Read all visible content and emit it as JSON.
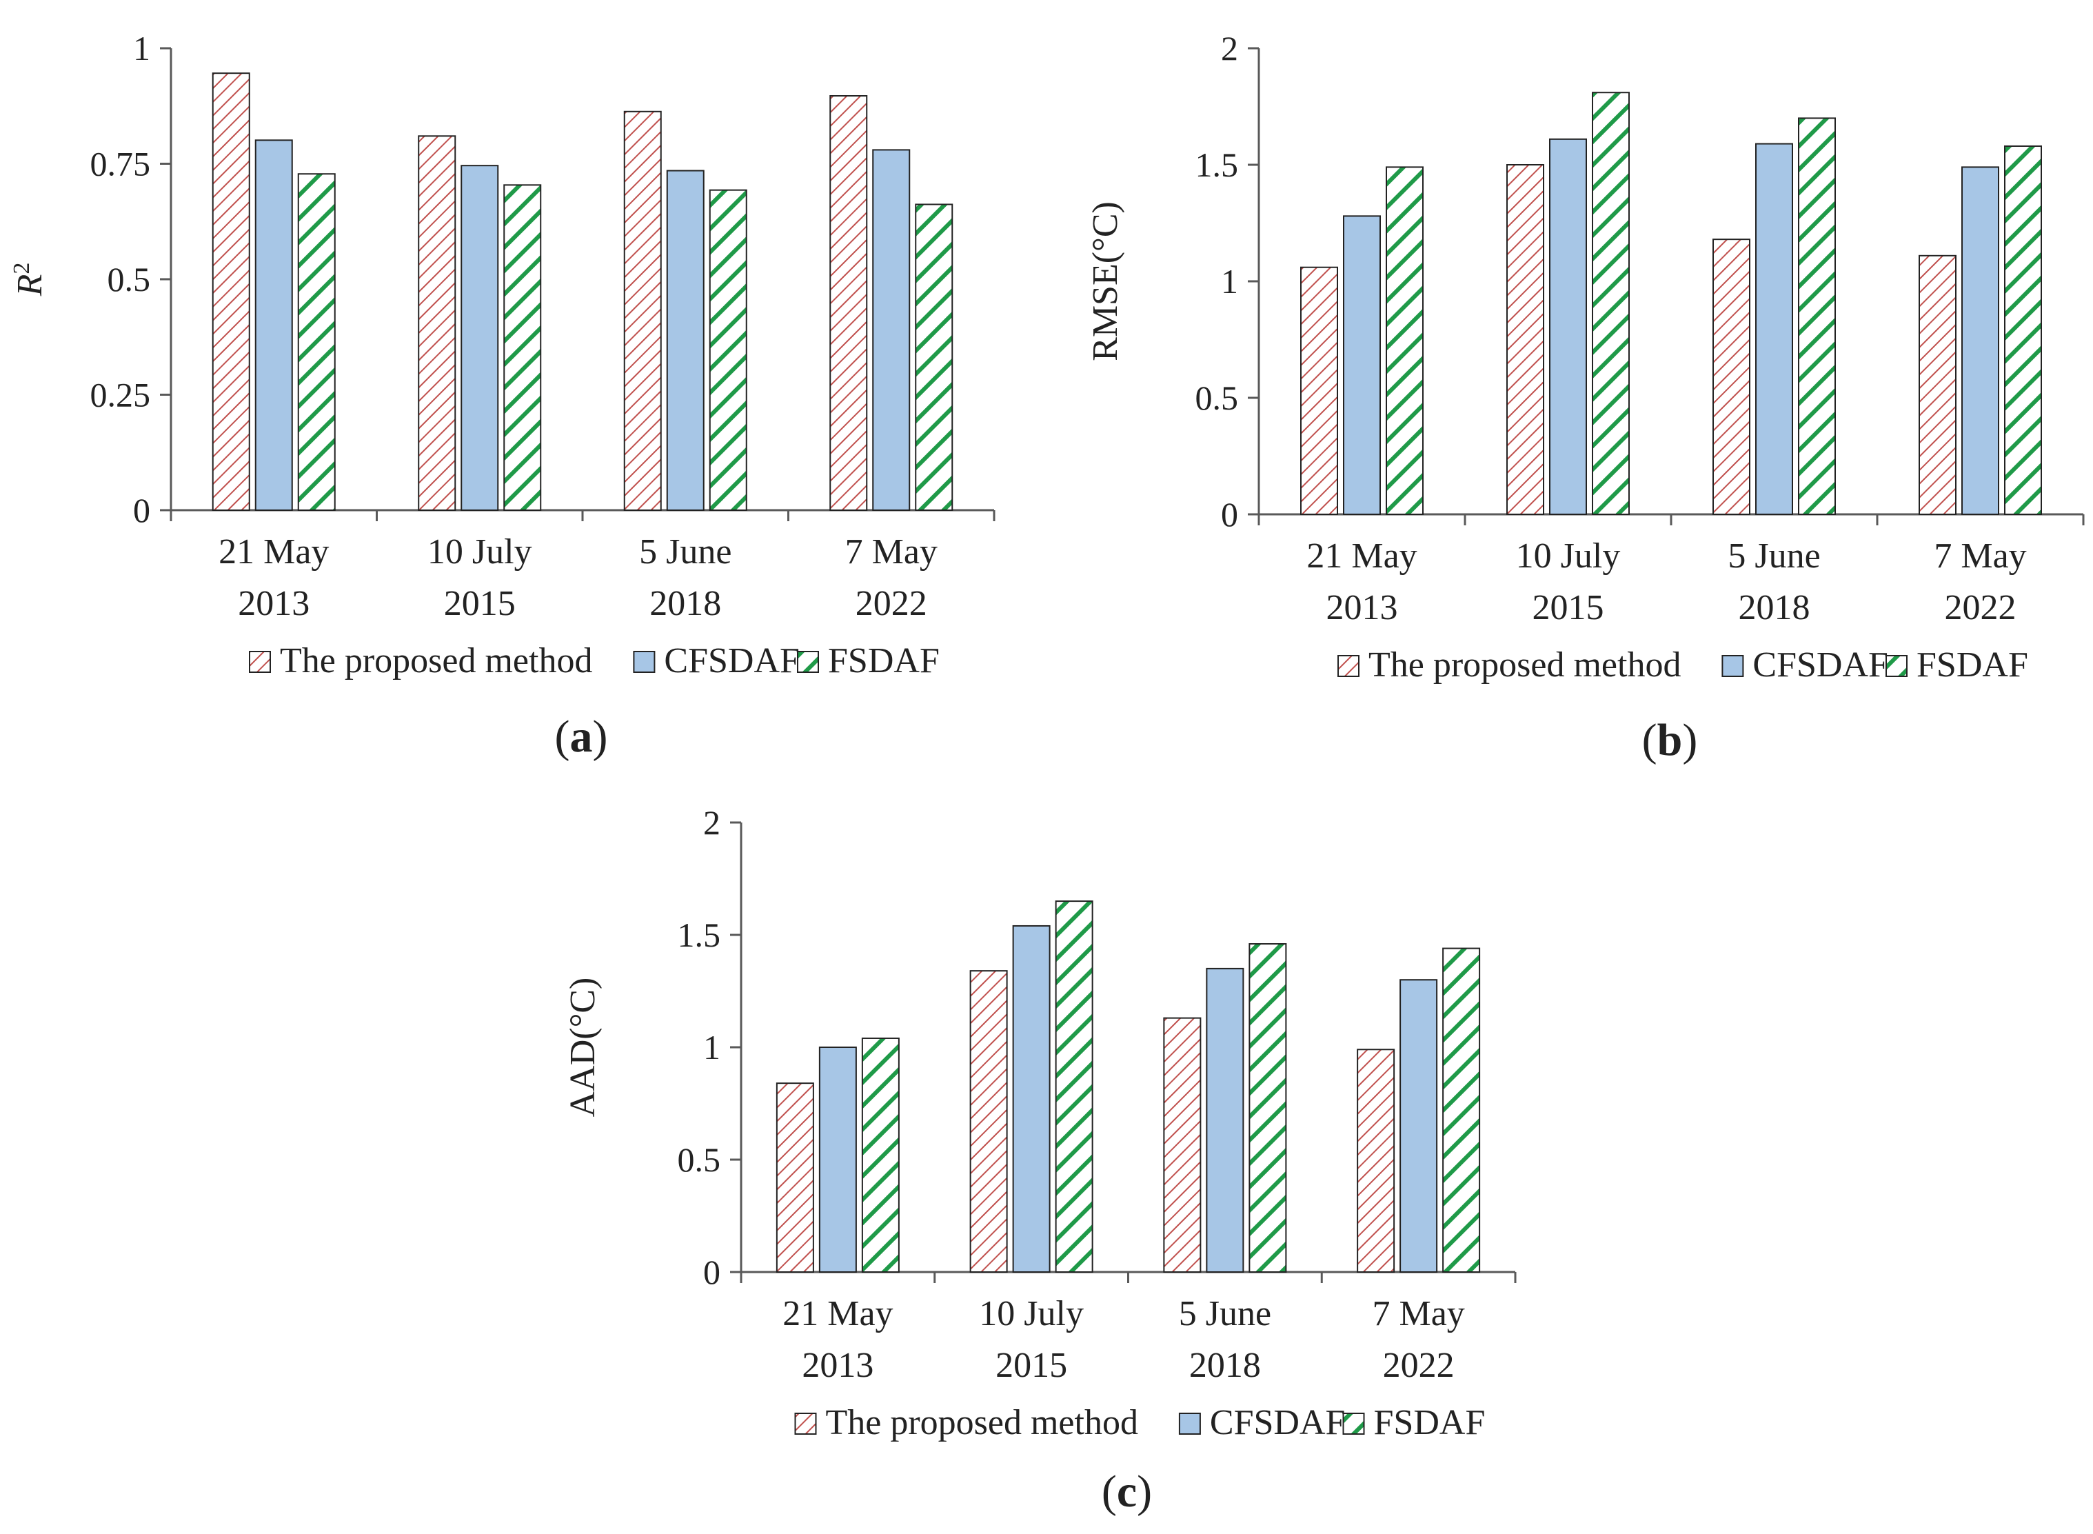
{
  "colors": {
    "proposed_stripe": "#c0504d",
    "proposed_bg": "#ffffff",
    "cfsdaf_fill": "#a7c6e6",
    "fsdaf_stripe": "#1f9a48",
    "fsdaf_bg": "#ffffff",
    "axis": "#595959",
    "bar_edge": "#222222"
  },
  "legend": [
    "The proposed method",
    "CFSDAF",
    "FSDAF"
  ],
  "chart_data": [
    {
      "type": "bar",
      "panel": "(a)",
      "panel_letter": "a",
      "ylabel": "R",
      "ylabel_sup": "2",
      "ylim": [
        0,
        1
      ],
      "yticks": [
        0,
        0.25,
        0.5,
        0.75,
        1
      ],
      "ytick_labels": [
        "0",
        "0.25",
        "0.5",
        "0.75",
        "1"
      ],
      "categories": [
        [
          "21 May",
          "2013"
        ],
        [
          "10 July",
          "2015"
        ],
        [
          "5 June",
          "2018"
        ],
        [
          "7 May",
          "2022"
        ]
      ],
      "series": [
        {
          "name": "The proposed method",
          "values": [
            0.946,
            0.81,
            0.863,
            0.897
          ]
        },
        {
          "name": "CFSDAF",
          "values": [
            0.801,
            0.746,
            0.735,
            0.78
          ]
        },
        {
          "name": "FSDAF",
          "values": [
            0.728,
            0.704,
            0.693,
            0.662
          ]
        }
      ]
    },
    {
      "type": "bar",
      "panel": "(b)",
      "panel_letter": "b",
      "ylabel": "RMSE(°C)",
      "ylim": [
        0,
        2
      ],
      "yticks": [
        0,
        0.5,
        1,
        1.5,
        2
      ],
      "ytick_labels": [
        "0",
        "0.5",
        "1",
        "1.5",
        "2"
      ],
      "categories": [
        [
          "21 May",
          "2013"
        ],
        [
          "10 July",
          "2015"
        ],
        [
          "5 June",
          "2018"
        ],
        [
          "7 May",
          "2022"
        ]
      ],
      "series": [
        {
          "name": "The proposed method",
          "values": [
            1.06,
            1.5,
            1.18,
            1.11
          ]
        },
        {
          "name": "CFSDAF",
          "values": [
            1.28,
            1.61,
            1.59,
            1.49
          ]
        },
        {
          "name": "FSDAF",
          "values": [
            1.49,
            1.81,
            1.7,
            1.58
          ]
        }
      ]
    },
    {
      "type": "bar",
      "panel": "(c)",
      "panel_letter": "c",
      "ylabel": "AAD(°C)",
      "ylim": [
        0,
        2
      ],
      "yticks": [
        0,
        0.5,
        1,
        1.5,
        2
      ],
      "ytick_labels": [
        "0",
        "0.5",
        "1",
        "1.5",
        "2"
      ],
      "categories": [
        [
          "21 May",
          "2013"
        ],
        [
          "10 July",
          "2015"
        ],
        [
          "5 June",
          "2018"
        ],
        [
          "7 May",
          "2022"
        ]
      ],
      "series": [
        {
          "name": "The proposed method",
          "values": [
            0.84,
            1.34,
            1.13,
            0.99
          ]
        },
        {
          "name": "CFSDAF",
          "values": [
            1.0,
            1.54,
            1.35,
            1.3
          ]
        },
        {
          "name": "FSDAF",
          "values": [
            1.04,
            1.65,
            1.46,
            1.44
          ]
        }
      ]
    }
  ]
}
